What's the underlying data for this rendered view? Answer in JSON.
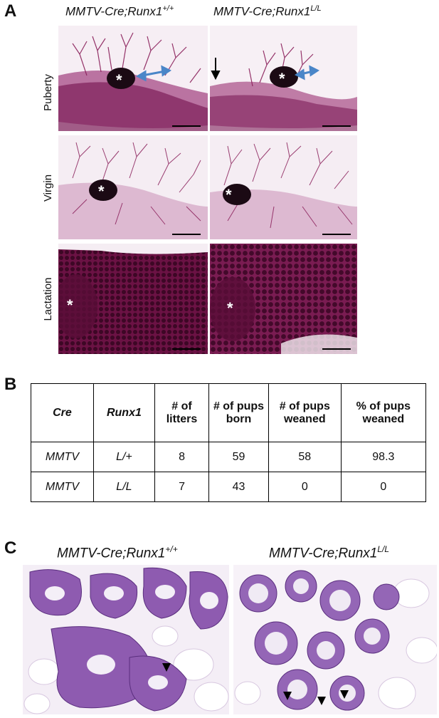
{
  "panel_a": {
    "letter": "A",
    "columns": [
      {
        "prefix": "MMTV-Cre;Runx1",
        "superscript": "+/+"
      },
      {
        "prefix": "MMTV-Cre;Runx1",
        "superscript": "L/L"
      }
    ],
    "rows": [
      "Puberty",
      "Virgin",
      "Lactation"
    ],
    "asterisk": "*"
  },
  "panel_b": {
    "letter": "B",
    "headers": [
      "Cre",
      "Runx1",
      "# of litters",
      "# of pups born",
      "# of pups weaned",
      "% of pups weaned"
    ],
    "rows": [
      [
        "MMTV",
        "L/+",
        "8",
        "59",
        "58",
        "98.3"
      ],
      [
        "MMTV",
        "L/L",
        "7",
        "43",
        "0",
        "0"
      ]
    ]
  },
  "panel_c": {
    "letter": "C",
    "columns": [
      {
        "prefix": "MMTV-Cre;Runx1",
        "superscript": "+/+"
      },
      {
        "prefix": "MMTV-Cre;Runx1",
        "superscript": "L/L"
      }
    ]
  },
  "colors": {
    "stain": "#8a1f5a",
    "stain_light": "#d9b3cf",
    "he_purple": "#7a4a9e",
    "arrow_blue": "#4a86c8"
  }
}
